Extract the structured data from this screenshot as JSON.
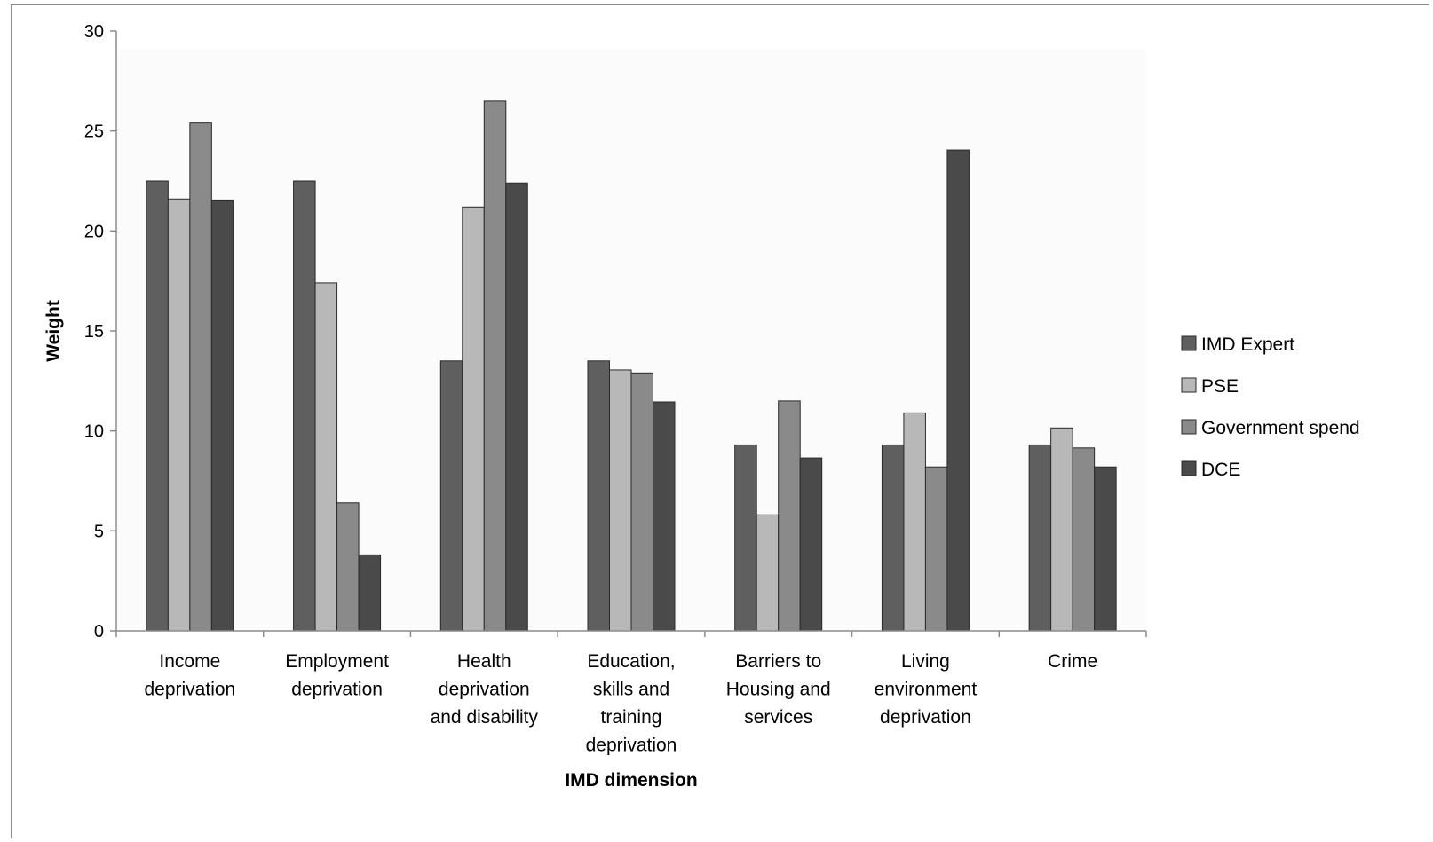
{
  "chart_data": {
    "type": "bar",
    "title": "",
    "xlabel": "IMD dimension",
    "ylabel": "Weight",
    "ylim": [
      0,
      30
    ],
    "yticks": [
      0,
      5,
      10,
      15,
      20,
      25,
      30
    ],
    "grid": false,
    "legend_position": "right",
    "categories": [
      [
        "Income",
        "deprivation"
      ],
      [
        "Employment",
        "deprivation"
      ],
      [
        "Health",
        "deprivation",
        "and disability"
      ],
      [
        "Education,",
        "skills and",
        "training",
        "deprivation"
      ],
      [
        "Barriers to",
        "Housing and",
        "services"
      ],
      [
        "Living",
        "environment",
        "deprivation"
      ],
      [
        "Crime"
      ]
    ],
    "series": [
      {
        "name": "IMD Expert",
        "color": "#5f5f5f",
        "values": [
          22.5,
          22.5,
          13.5,
          13.5,
          9.3,
          9.3,
          9.3
        ]
      },
      {
        "name": "PSE",
        "color": "#b8b8b8",
        "values": [
          21.6,
          17.4,
          21.2,
          13.05,
          5.8,
          10.9,
          10.15
        ]
      },
      {
        "name": "Government spend",
        "color": "#8a8a8a",
        "values": [
          25.4,
          6.4,
          26.5,
          12.9,
          11.5,
          8.2,
          9.15
        ]
      },
      {
        "name": "DCE",
        "color": "#4a4a4a",
        "values": [
          21.55,
          3.8,
          22.4,
          11.45,
          8.65,
          24.05,
          8.2
        ]
      }
    ]
  }
}
